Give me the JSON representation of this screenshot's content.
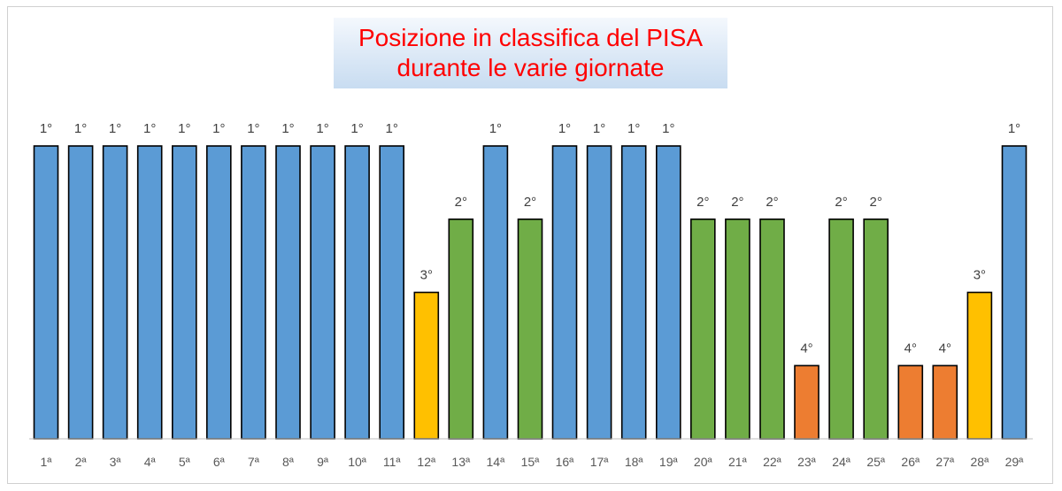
{
  "chart_data": {
    "type": "bar",
    "title_lines": [
      "Posizione in classifica del PISA",
      "durante le varie giornate"
    ],
    "categories": [
      "1ª",
      "2ª",
      "3ª",
      "4ª",
      "5ª",
      "6ª",
      "7ª",
      "8ª",
      "9ª",
      "10ª",
      "11ª",
      "12ª",
      "13ª",
      "14ª",
      "15ª",
      "16ª",
      "17ª",
      "18ª",
      "19ª",
      "20ª",
      "21ª",
      "22ª",
      "23ª",
      "24ª",
      "25ª",
      "26ª",
      "27ª",
      "28ª",
      "29ª"
    ],
    "values": [
      1,
      1,
      1,
      1,
      1,
      1,
      1,
      1,
      1,
      1,
      1,
      3,
      2,
      1,
      2,
      1,
      1,
      1,
      1,
      2,
      2,
      2,
      4,
      2,
      2,
      4,
      4,
      3,
      1
    ],
    "data_labels": [
      "1°",
      "1°",
      "1°",
      "1°",
      "1°",
      "1°",
      "1°",
      "1°",
      "1°",
      "1°",
      "1°",
      "3°",
      "2°",
      "1°",
      "2°",
      "1°",
      "1°",
      "1°",
      "1°",
      "2°",
      "2°",
      "2°",
      "4°",
      "2°",
      "2°",
      "4°",
      "4°",
      "3°",
      "1°"
    ],
    "colors_by_value": {
      "1": "#5b9bd5",
      "2": "#70ad47",
      "3": "#ffc000",
      "4": "#ed7d31"
    },
    "scale": "inverted position (1° tallest)",
    "grid": false,
    "legend": "none"
  }
}
